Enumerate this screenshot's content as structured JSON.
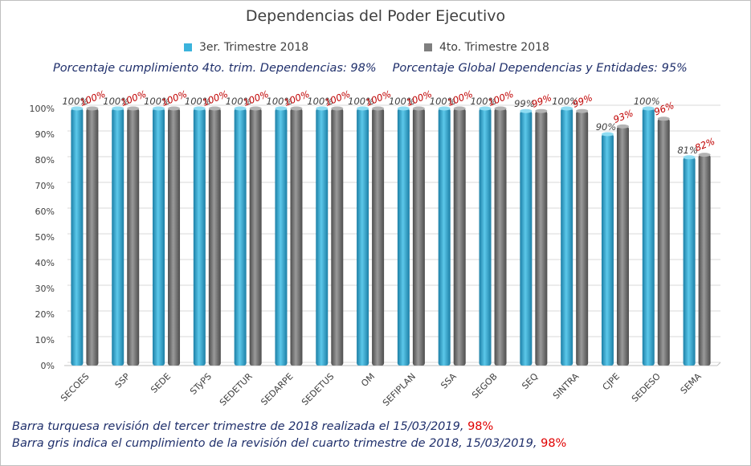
{
  "chart_data": {
    "type": "bar",
    "title": "Dependencias del Poder Ejecutivo",
    "categories": [
      "SECOES",
      "SSP",
      "SEDE",
      "STyPS",
      "SEDETUR",
      "SEDARPE",
      "SEDETUS",
      "OM",
      "SEFIPLAN",
      "SSA",
      "SEGOB",
      "SEQ",
      "SINTRA",
      "CJPE",
      "SEDESO",
      "SEMA"
    ],
    "series": [
      {
        "name": "3er. Trimestre 2018",
        "color": "#3bb3dc",
        "values": [
          100,
          100,
          100,
          100,
          100,
          100,
          100,
          100,
          100,
          100,
          100,
          99,
          100,
          90,
          100,
          81
        ]
      },
      {
        "name": "4to. Trimestre 2018",
        "color": "#7f7f7f",
        "values": [
          100,
          100,
          100,
          100,
          100,
          100,
          100,
          100,
          100,
          100,
          100,
          99,
          99,
          93,
          96,
          82
        ]
      }
    ],
    "ylim": [
      0,
      100
    ],
    "yticks": [
      0,
      10,
      20,
      30,
      40,
      50,
      60,
      70,
      80,
      90,
      100
    ],
    "ytick_labels": [
      "0%",
      "10%",
      "20%",
      "30%",
      "40%",
      "50%",
      "60%",
      "70%",
      "80%",
      "90%",
      "100%"
    ],
    "data_label_colors": [
      "#404040",
      "#c00000"
    ],
    "grid": true,
    "legend_position": "top"
  },
  "stats": {
    "dependencias": "Porcentaje  cumplimiento  4to.  trim.  Dependencias:  98%",
    "global": "Porcentaje  Global  Dependencias  y  Entidades:  95%"
  },
  "notes": {
    "line1": "Barra turquesa  revisión  del  tercer  trimestre  de  2018  realizada  el   15/03/2019, ",
    "line1_pct": "98%",
    "line2": "Barra gris indica el cumplimiento  de la revisión  del  cuarto  trimestre  de  2018,   15/03/2019,  ",
    "line2_pct": "98%"
  }
}
